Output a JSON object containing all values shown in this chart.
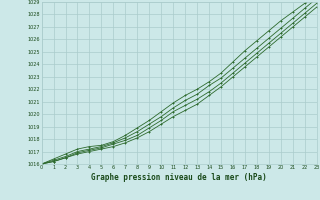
{
  "title": "Graphe pression niveau de la mer (hPa)",
  "x_values": [
    0,
    1,
    2,
    3,
    4,
    5,
    6,
    7,
    8,
    9,
    10,
    11,
    12,
    13,
    14,
    15,
    16,
    17,
    18,
    19,
    20,
    21,
    22,
    23
  ],
  "line1": [
    1016.0,
    1016.2,
    1016.5,
    1016.8,
    1017.0,
    1017.2,
    1017.4,
    1017.7,
    1018.1,
    1018.6,
    1019.2,
    1019.8,
    1020.3,
    1020.8,
    1021.5,
    1022.2,
    1023.0,
    1023.8,
    1024.6,
    1025.4,
    1026.2,
    1027.0,
    1027.8,
    1028.6
  ],
  "line2": [
    1016.0,
    1016.2,
    1016.5,
    1016.9,
    1017.1,
    1017.3,
    1017.6,
    1017.9,
    1018.3,
    1018.9,
    1019.5,
    1020.2,
    1020.7,
    1021.2,
    1021.8,
    1022.5,
    1023.3,
    1024.1,
    1024.9,
    1025.7,
    1026.5,
    1027.3,
    1028.1,
    1028.9
  ],
  "line3": [
    1016.0,
    1016.3,
    1016.6,
    1017.0,
    1017.2,
    1017.4,
    1017.7,
    1018.1,
    1018.6,
    1019.2,
    1019.8,
    1020.5,
    1021.1,
    1021.6,
    1022.3,
    1022.9,
    1023.7,
    1024.5,
    1025.3,
    1026.1,
    1026.9,
    1027.7,
    1028.5,
    1029.3
  ],
  "line4": [
    1016.0,
    1016.4,
    1016.8,
    1017.2,
    1017.4,
    1017.5,
    1017.8,
    1018.3,
    1018.9,
    1019.5,
    1020.2,
    1020.9,
    1021.5,
    1022.0,
    1022.6,
    1023.3,
    1024.2,
    1025.1,
    1025.9,
    1026.7,
    1027.5,
    1028.2,
    1028.9,
    1029.5
  ],
  "line_color": "#2d6a2d",
  "marker_color": "#2d6a2d",
  "bg_color": "#cce8e8",
  "grid_color": "#aacccc",
  "text_color": "#1a4a1a",
  "ylim_min": 1016,
  "ylim_max": 1029,
  "xlim_min": 0,
  "xlim_max": 23
}
